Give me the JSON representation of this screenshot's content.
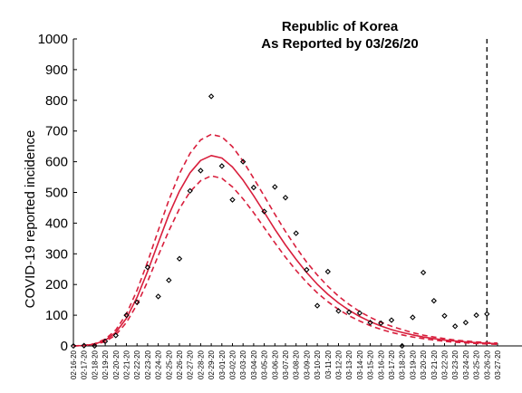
{
  "chart_data": {
    "type": "line",
    "title": [
      "Republic of Korea",
      "As Reported by 03/26/20"
    ],
    "xlabel": "",
    "ylabel": "COVID-19 reported incidence",
    "ylim": [
      0,
      1000
    ],
    "yticks": [
      0,
      100,
      200,
      300,
      400,
      500,
      600,
      700,
      800,
      900,
      1000
    ],
    "categories": [
      "02-16-20",
      "02-17-20",
      "02-18-20",
      "02-19-20",
      "02-20-20",
      "02-21-20",
      "02-22-20",
      "02-23-20",
      "02-24-20",
      "02-25-20",
      "02-26-20",
      "02-27-20",
      "02-28-20",
      "02-29-20",
      "03-01-20",
      "03-02-20",
      "03-03-20",
      "03-04-20",
      "03-05-20",
      "03-06-20",
      "03-07-20",
      "03-08-20",
      "03-09-20",
      "03-10-20",
      "03-11-20",
      "03-12-20",
      "03-13-20",
      "03-14-20",
      "03-15-20",
      "03-16-20",
      "03-17-20",
      "03-18-20",
      "03-19-20",
      "03-20-20",
      "03-21-20",
      "03-22-20",
      "03-23-20",
      "03-24-20",
      "03-25-20",
      "03-26-20",
      "03-27-20"
    ],
    "reported_date": "03-26-20",
    "colors": {
      "fit": "#d81e3c",
      "observed": "#000000",
      "marker": "#000000"
    },
    "series": [
      {
        "style": "markers",
        "values": [
          0,
          1,
          0,
          15,
          34,
          100,
          142,
          256,
          161,
          214,
          284,
          505,
          571,
          813,
          586,
          476,
          600,
          516,
          438,
          518,
          483,
          367,
          248,
          131,
          242,
          114,
          110,
          107,
          76,
          74,
          84,
          0,
          93,
          239,
          147,
          98,
          64,
          76,
          100,
          104,
          null
        ]
      },
      {
        "style": "solid",
        "values": [
          0,
          1.4,
          6,
          18,
          44,
          90,
          158,
          243,
          336,
          427,
          504,
          564,
          604,
          620,
          612,
          583,
          540,
          489,
          435,
          380,
          329,
          282,
          239,
          201,
          168,
          140,
          116,
          96,
          79,
          65,
          53,
          44,
          36,
          29,
          24,
          19,
          16,
          13,
          10.6,
          8.6,
          7
        ]
      },
      {
        "style": "dashed",
        "values": [
          0,
          1.8,
          7,
          22,
          52,
          104,
          181,
          274,
          376,
          475,
          561,
          627,
          671,
          689,
          681,
          649,
          602,
          546,
          488,
          429,
          373,
          321,
          273,
          231,
          194,
          162,
          135,
          112,
          93,
          77,
          64,
          53,
          43,
          35,
          29,
          24,
          19,
          16,
          13,
          11,
          9
        ]
      },
      {
        "style": "dashed",
        "values": [
          0,
          1,
          4.5,
          14,
          36,
          76,
          135,
          210,
          294,
          375,
          447,
          502,
          538,
          554,
          546,
          518,
          479,
          434,
          385,
          336,
          289,
          246,
          207,
          173,
          144,
          119,
          98,
          81,
          66,
          54,
          44,
          36,
          29,
          24,
          19,
          15,
          12,
          10,
          8,
          6.5,
          5
        ]
      }
    ]
  }
}
